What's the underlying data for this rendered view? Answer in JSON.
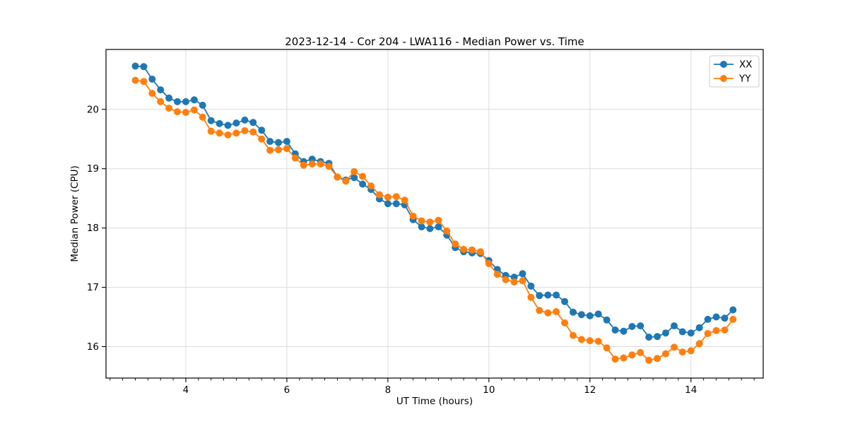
{
  "chart_data": {
    "type": "line",
    "title": "2023-12-14 - Cor 204 - LWA116 - Median Power vs. Time",
    "xlabel": "UT Time (hours)",
    "ylabel": "Median Power (CPU)",
    "xlim": [
      2.42,
      15.43
    ],
    "ylim": [
      15.47,
      21.01
    ],
    "xticks": [
      4,
      6,
      8,
      10,
      12,
      14
    ],
    "yticks": [
      16,
      17,
      18,
      19,
      20
    ],
    "x_minor_step": 0.25,
    "grid": true,
    "grid_color": "#dcdcdc",
    "spine_color": "#000000",
    "legend_position": "upper right",
    "x": [
      3,
      3.167,
      3.333,
      3.5,
      3.667,
      3.833,
      4,
      4.167,
      4.333,
      4.5,
      4.667,
      4.833,
      5,
      5.167,
      5.333,
      5.5,
      5.667,
      5.833,
      6,
      6.167,
      6.333,
      6.5,
      6.667,
      6.833,
      7,
      7.167,
      7.333,
      7.5,
      7.667,
      7.833,
      8,
      8.167,
      8.333,
      8.5,
      8.667,
      8.833,
      9,
      9.167,
      9.333,
      9.5,
      9.667,
      9.833,
      10,
      10.167,
      10.333,
      10.5,
      10.667,
      10.833,
      11,
      11.167,
      11.333,
      11.5,
      11.667,
      11.833,
      12,
      12.167,
      12.333,
      12.5,
      12.667,
      12.833,
      13,
      13.167,
      13.333,
      13.5,
      13.667,
      13.833,
      14,
      14.167,
      14.333,
      14.5,
      14.667,
      14.833
    ],
    "series": [
      {
        "name": "XX",
        "color": "#1f77b4",
        "values": [
          20.73,
          20.72,
          20.51,
          20.33,
          20.19,
          20.13,
          20.13,
          20.16,
          20.07,
          19.81,
          19.76,
          19.73,
          19.77,
          19.82,
          19.78,
          19.65,
          19.46,
          19.44,
          19.46,
          19.25,
          19.12,
          19.16,
          19.12,
          19.09,
          18.86,
          18.81,
          18.85,
          18.74,
          18.65,
          18.49,
          18.41,
          18.41,
          18.39,
          18.14,
          18.02,
          17.99,
          18.02,
          17.88,
          17.67,
          17.6,
          17.58,
          17.57,
          17.45,
          17.3,
          17.2,
          17.17,
          17.23,
          17.02,
          16.86,
          16.87,
          16.87,
          16.76,
          16.58,
          16.54,
          16.52,
          16.55,
          16.45,
          16.28,
          16.26,
          16.34,
          16.35,
          16.16,
          16.17,
          16.23,
          16.35,
          16.25,
          16.23,
          16.32,
          16.46,
          16.5,
          16.48,
          16.62
        ]
      },
      {
        "name": "YY",
        "color": "#ff7f0e",
        "values": [
          20.49,
          20.47,
          20.27,
          20.13,
          20.02,
          19.96,
          19.95,
          19.99,
          19.87,
          19.63,
          19.6,
          19.57,
          19.6,
          19.64,
          19.62,
          19.5,
          19.31,
          19.32,
          19.34,
          19.18,
          19.06,
          19.08,
          19.08,
          19.04,
          18.86,
          18.79,
          18.95,
          18.87,
          18.71,
          18.56,
          18.52,
          18.53,
          18.47,
          18.2,
          18.12,
          18.1,
          18.13,
          17.95,
          17.73,
          17.64,
          17.63,
          17.6,
          17.4,
          17.22,
          17.13,
          17.09,
          17.11,
          16.83,
          16.61,
          16.57,
          16.59,
          16.4,
          16.19,
          16.12,
          16.1,
          16.09,
          15.98,
          15.79,
          15.81,
          15.86,
          15.9,
          15.77,
          15.8,
          15.88,
          15.99,
          15.91,
          15.93,
          16.05,
          16.22,
          16.27,
          16.28,
          16.46
        ]
      }
    ]
  }
}
